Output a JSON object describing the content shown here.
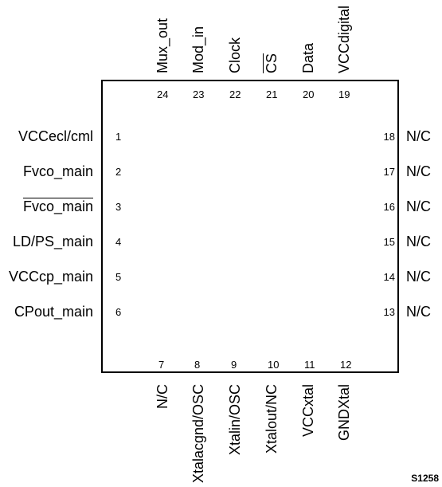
{
  "top_pins": [
    {
      "num": "24",
      "label": "Mux_out"
    },
    {
      "num": "23",
      "label": "Mod_in"
    },
    {
      "num": "22",
      "label": "Clock"
    },
    {
      "num": "21",
      "label": "CS",
      "overbar": true
    },
    {
      "num": "20",
      "label": "Data"
    },
    {
      "num": "19",
      "label": "VCCdigital"
    }
  ],
  "left_pins": [
    {
      "num": "1",
      "label": "VCCecl/cml"
    },
    {
      "num": "2",
      "label": "Fvco_main"
    },
    {
      "num": "3",
      "label": "Fvco_main",
      "overbar": true
    },
    {
      "num": "4",
      "label": "LD/PS_main"
    },
    {
      "num": "5",
      "label": "VCCcp_main"
    },
    {
      "num": "6",
      "label": "CPout_main"
    }
  ],
  "right_pins": [
    {
      "num": "18",
      "label": "N/C"
    },
    {
      "num": "17",
      "label": "N/C"
    },
    {
      "num": "16",
      "label": "N/C"
    },
    {
      "num": "15",
      "label": "N/C"
    },
    {
      "num": "14",
      "label": "N/C"
    },
    {
      "num": "13",
      "label": "N/C"
    }
  ],
  "bottom_pins": [
    {
      "num": "7",
      "label": "N/C"
    },
    {
      "num": "8",
      "label": "Xtalacgnd/OSC"
    },
    {
      "num": "9",
      "label": "Xtalin/OSC"
    },
    {
      "num": "10",
      "label": "Xtalout/NC"
    },
    {
      "num": "11",
      "label": "VCCxtal"
    },
    {
      "num": "12",
      "label": "GNDXtal"
    }
  ],
  "figure_id": "S1258"
}
